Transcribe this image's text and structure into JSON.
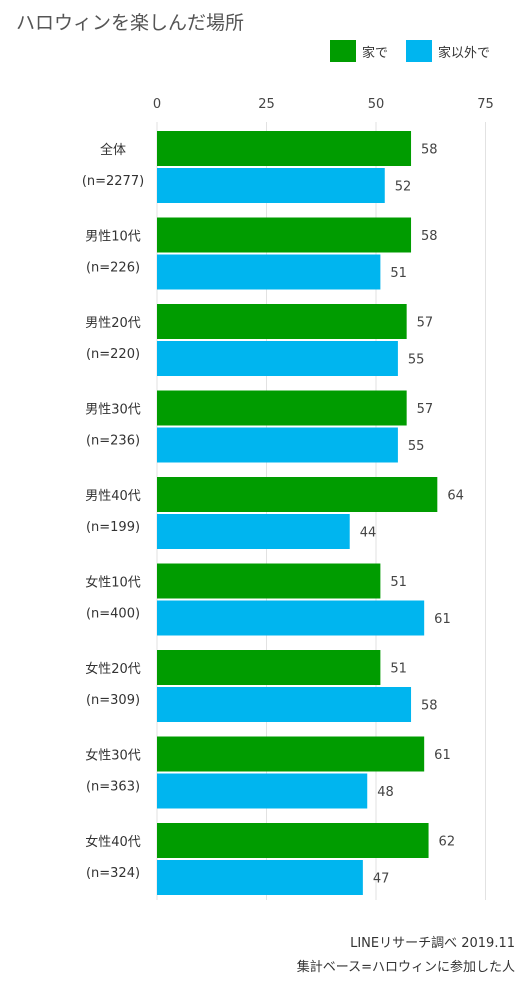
{
  "title": "ハロウィンを楽しんだ場所",
  "legend": [
    {
      "label": "家で",
      "color": "#009C00"
    },
    {
      "label": "家以外で",
      "color": "#00B5EF"
    }
  ],
  "chart_data": {
    "type": "bar",
    "orientation": "horizontal",
    "categories": [
      {
        "name": "全体",
        "n": "(n=2277)"
      },
      {
        "name": "男性10代",
        "n": "(n=226)"
      },
      {
        "name": "男性20代",
        "n": "(n=220)"
      },
      {
        "name": "男性30代",
        "n": "(n=236)"
      },
      {
        "name": "男性40代",
        "n": "(n=199)"
      },
      {
        "name": "女性10代",
        "n": "(n=400)"
      },
      {
        "name": "女性20代",
        "n": "(n=309)"
      },
      {
        "name": "女性30代",
        "n": "(n=363)"
      },
      {
        "name": "女性40代",
        "n": "(n=324)"
      }
    ],
    "series": [
      {
        "name": "家で",
        "color": "#009C00",
        "values": [
          58,
          58,
          57,
          57,
          64,
          51,
          51,
          61,
          62
        ]
      },
      {
        "name": "家以外で",
        "color": "#00B5EF",
        "values": [
          52,
          51,
          55,
          55,
          44,
          61,
          58,
          48,
          47
        ]
      }
    ],
    "xlim": [
      0,
      75
    ],
    "xticks": [
      0,
      25,
      50,
      75
    ],
    "grid": true,
    "legend_position": "top-right"
  },
  "source": {
    "line1": "LINEリサーチ調べ 2019.11",
    "line2": "集計ベース=ハロウィンに参加した人"
  }
}
